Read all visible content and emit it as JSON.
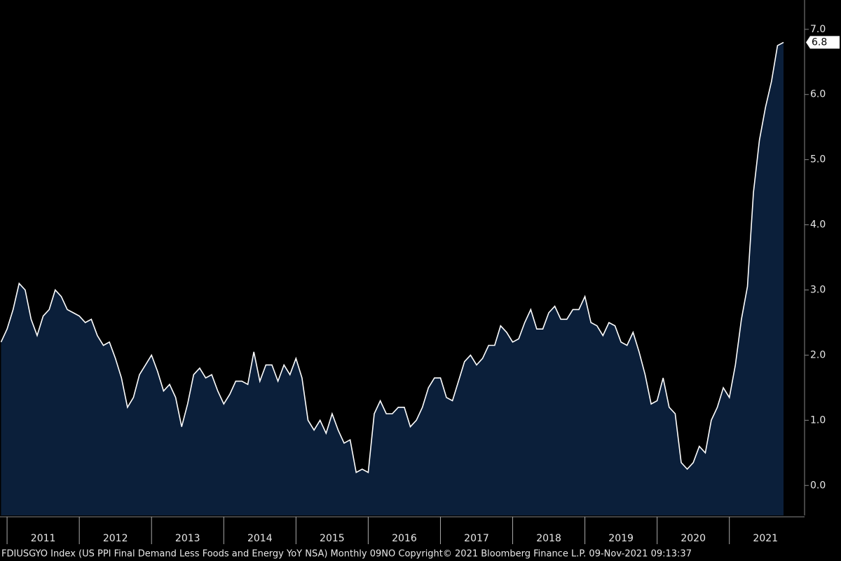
{
  "chart_data": {
    "type": "area",
    "series": [
      {
        "name": null,
        "color": "#0b1f3a",
        "line_color": "#ffffff",
        "values": [
          2.2,
          2.4,
          2.7,
          3.1,
          3.0,
          2.55,
          2.3,
          2.6,
          2.7,
          3.0,
          2.9,
          2.7,
          2.65,
          2.6,
          2.5,
          2.55,
          2.3,
          2.15,
          2.2,
          1.95,
          1.65,
          1.2,
          1.35,
          1.7,
          1.85,
          2.0,
          1.75,
          1.45,
          1.55,
          1.35,
          0.9,
          1.25,
          1.7,
          1.8,
          1.65,
          1.7,
          1.45,
          1.25,
          1.4,
          1.6,
          1.6,
          1.55,
          2.05,
          1.6,
          1.85,
          1.85,
          1.6,
          1.85,
          1.7,
          1.95,
          1.65,
          1.0,
          0.85,
          1.0,
          0.8,
          1.1,
          0.85,
          0.65,
          0.7,
          0.2,
          0.25,
          0.2,
          1.1,
          1.3,
          1.1,
          1.1,
          1.2,
          1.2,
          0.9,
          1.0,
          1.2,
          1.5,
          1.65,
          1.65,
          1.35,
          1.3,
          1.6,
          1.9,
          2.0,
          1.85,
          1.95,
          2.15,
          2.15,
          2.45,
          2.35,
          2.2,
          2.25,
          2.5,
          2.7,
          2.4,
          2.4,
          2.65,
          2.75,
          2.55,
          2.55,
          2.7,
          2.7,
          2.9,
          2.5,
          2.45,
          2.3,
          2.5,
          2.45,
          2.2,
          2.15,
          2.35,
          2.05,
          1.7,
          1.25,
          1.3,
          1.65,
          1.2,
          1.1,
          0.35,
          0.25,
          0.35,
          0.6,
          0.5,
          1.0,
          1.2,
          1.5,
          1.35,
          1.85,
          2.55,
          3.05,
          4.5,
          5.3,
          5.8,
          6.2,
          6.75,
          6.8
        ]
      }
    ],
    "categories": [
      null,
      null,
      null,
      null,
      null,
      null,
      null,
      "2011",
      null,
      null,
      null,
      null,
      null,
      null,
      null,
      null,
      null,
      null,
      null,
      "2012",
      null,
      null,
      null,
      null,
      null,
      null,
      null,
      null,
      null,
      null,
      null,
      "2013",
      null,
      null,
      null,
      null,
      null,
      null,
      null,
      null,
      null,
      null,
      null,
      "2014",
      null,
      null,
      null,
      null,
      null,
      null,
      null,
      null,
      null,
      null,
      null,
      "2015",
      null,
      null,
      null,
      null,
      null,
      null,
      null,
      null,
      null,
      null,
      null,
      "2016",
      null,
      null,
      null,
      null,
      null,
      null,
      null,
      null,
      null,
      null,
      null,
      "2017",
      null,
      null,
      null,
      null,
      null,
      null,
      null,
      null,
      null,
      null,
      null,
      "2018",
      null,
      null,
      null,
      null,
      null,
      null,
      null,
      null,
      null,
      null,
      null,
      "2019",
      null,
      null,
      null,
      null,
      null,
      null,
      null,
      null,
      null,
      null,
      null,
      "2020",
      null,
      null,
      null,
      null,
      null,
      null,
      null,
      null,
      null,
      null,
      null,
      "2021",
      null,
      null,
      null
    ],
    "ylim": [
      -0.46,
      7.45
    ],
    "yticks": [
      {
        "value": 0,
        "label": "0.0"
      },
      {
        "value": 1,
        "label": "1.0"
      },
      {
        "value": 2,
        "label": "2.0"
      },
      {
        "value": 3,
        "label": "3.0"
      },
      {
        "value": 4,
        "label": "4.0"
      },
      {
        "value": 5,
        "label": "5.0"
      },
      {
        "value": 6,
        "label": "6.0"
      },
      {
        "value": 7,
        "label": "7.0"
      }
    ],
    "footer": "FDIUSGYO Index (US PPI Final Demand Less Foods and Energy YoY NSA)  Monthly 09NO Copyright© 2021 Bloomberg Finance L.P.  09-Nov-2021 09:13:37"
  }
}
